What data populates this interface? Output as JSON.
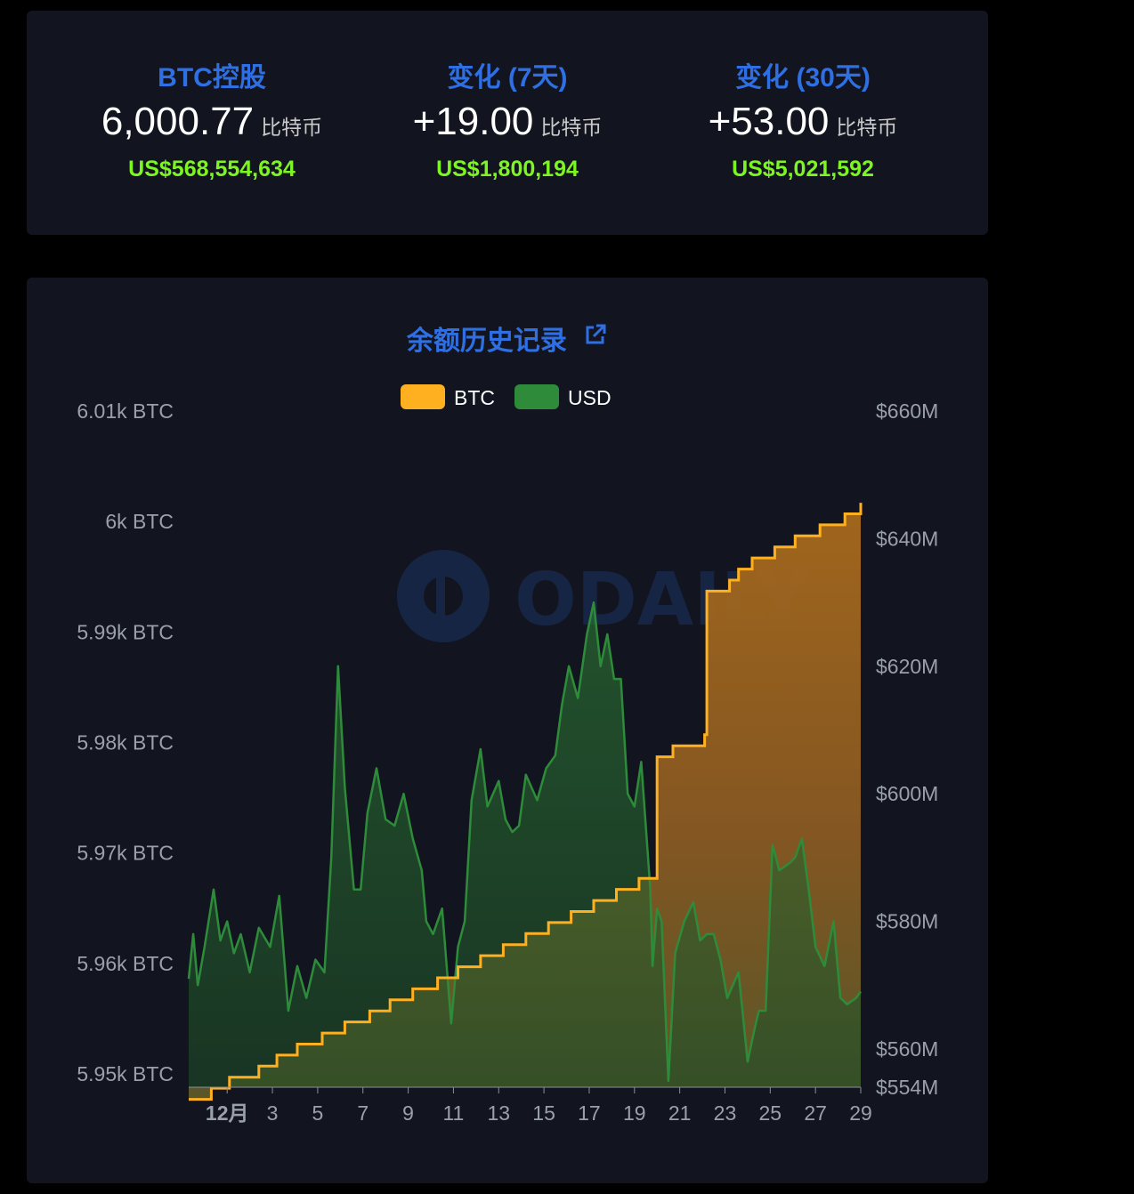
{
  "stats": [
    {
      "label": "BTC控股",
      "value": "6,000.77",
      "unit": "比特币",
      "usd": "US$568,554,634"
    },
    {
      "label": "变化 (7天)",
      "value": "+19.00",
      "unit": "比特币",
      "usd": "US$1,800,194"
    },
    {
      "label": "变化 (30天)",
      "value": "+53.00",
      "unit": "比特币",
      "usd": "US$5,021,592"
    }
  ],
  "watermark": "ODAILY",
  "colors": {
    "btc": "#ffb020",
    "usd": "#2e8b3a",
    "label": "#2f6fe4",
    "usd_text": "#7cf520",
    "card": "#12151f"
  },
  "chart_data": {
    "type": "line",
    "title": "余额历史记录",
    "title_icon": "external-link-icon",
    "legend": [
      {
        "name": "BTC",
        "color": "#ffb020"
      },
      {
        "name": "USD",
        "color": "#2e8b3a"
      }
    ],
    "legend_position": "top-center",
    "grid": false,
    "y_left": {
      "unit": " BTC",
      "min": 5.95,
      "max": 6.01,
      "ticks": [
        {
          "v": 6.01,
          "label": "6.01k BTC"
        },
        {
          "v": 6.0,
          "label": "6k BTC"
        },
        {
          "v": 5.99,
          "label": "5.99k BTC"
        },
        {
          "v": 5.98,
          "label": "5.98k BTC"
        },
        {
          "v": 5.97,
          "label": "5.97k BTC"
        },
        {
          "v": 5.96,
          "label": "5.96k BTC"
        },
        {
          "v": 5.95,
          "label": "5.95k BTC"
        }
      ]
    },
    "y_right": {
      "min": 554,
      "max": 660,
      "ticks": [
        {
          "v": 660,
          "label": "$660M"
        },
        {
          "v": 640,
          "label": "$640M"
        },
        {
          "v": 620,
          "label": "$620M"
        },
        {
          "v": 600,
          "label": "$600M"
        },
        {
          "v": 580,
          "label": "$580M"
        },
        {
          "v": 560,
          "label": "$560M"
        },
        {
          "v": 554,
          "label": "$554M"
        }
      ]
    },
    "x_axis": {
      "min": -0.7,
      "max": 29,
      "ticks": [
        {
          "v": 1,
          "label": "12月"
        },
        {
          "v": 3,
          "label": "3"
        },
        {
          "v": 5,
          "label": "5"
        },
        {
          "v": 7,
          "label": "7"
        },
        {
          "v": 9,
          "label": "9"
        },
        {
          "v": 11,
          "label": "11"
        },
        {
          "v": 13,
          "label": "13"
        },
        {
          "v": 15,
          "label": "15"
        },
        {
          "v": 17,
          "label": "17"
        },
        {
          "v": 19,
          "label": "19"
        },
        {
          "v": 21,
          "label": "21"
        },
        {
          "v": 23,
          "label": "23"
        },
        {
          "v": 25,
          "label": "25"
        },
        {
          "v": 27,
          "label": "27"
        },
        {
          "v": 29,
          "label": "29"
        }
      ]
    },
    "series": [
      {
        "name": "BTC",
        "axis": "left",
        "color": "#ffb020",
        "step": true,
        "points": [
          [
            -0.7,
            5.9477
          ],
          [
            0.3,
            5.9477
          ],
          [
            0.3,
            5.9487
          ],
          [
            1.1,
            5.9487
          ],
          [
            1.1,
            5.9497
          ],
          [
            2.4,
            5.9497
          ],
          [
            2.4,
            5.9507
          ],
          [
            3.2,
            5.9507
          ],
          [
            3.2,
            5.9517
          ],
          [
            4.1,
            5.9517
          ],
          [
            4.1,
            5.9527
          ],
          [
            5.2,
            5.9527
          ],
          [
            5.2,
            5.9537
          ],
          [
            6.2,
            5.9537
          ],
          [
            6.2,
            5.9547
          ],
          [
            7.3,
            5.9547
          ],
          [
            7.3,
            5.9557
          ],
          [
            8.2,
            5.9557
          ],
          [
            8.2,
            5.9567
          ],
          [
            9.2,
            5.9567
          ],
          [
            9.2,
            5.9577
          ],
          [
            10.3,
            5.9577
          ],
          [
            10.3,
            5.9587
          ],
          [
            11.2,
            5.9587
          ],
          [
            11.2,
            5.9597
          ],
          [
            12.2,
            5.9597
          ],
          [
            12.2,
            5.9607
          ],
          [
            13.2,
            5.9607
          ],
          [
            13.2,
            5.9617
          ],
          [
            14.2,
            5.9617
          ],
          [
            14.2,
            5.9627
          ],
          [
            15.2,
            5.9627
          ],
          [
            15.2,
            5.9637
          ],
          [
            16.2,
            5.9637
          ],
          [
            16.2,
            5.9647
          ],
          [
            17.2,
            5.9647
          ],
          [
            17.2,
            5.9657
          ],
          [
            18.2,
            5.9657
          ],
          [
            18.2,
            5.9667
          ],
          [
            19.2,
            5.9667
          ],
          [
            19.2,
            5.9677
          ],
          [
            20.0,
            5.9677
          ],
          [
            20.0,
            5.9787
          ],
          [
            20.7,
            5.9787
          ],
          [
            20.7,
            5.9797
          ],
          [
            22.1,
            5.9797
          ],
          [
            22.1,
            5.9807
          ],
          [
            22.2,
            5.9807
          ],
          [
            22.2,
            5.9937
          ],
          [
            23.2,
            5.9937
          ],
          [
            23.2,
            5.9947
          ],
          [
            23.6,
            5.9947
          ],
          [
            23.6,
            5.9957
          ],
          [
            24.2,
            5.9957
          ],
          [
            24.2,
            5.9967
          ],
          [
            25.2,
            5.9967
          ],
          [
            25.2,
            5.9977
          ],
          [
            26.1,
            5.9977
          ],
          [
            26.1,
            5.9987
          ],
          [
            27.2,
            5.9987
          ],
          [
            27.2,
            5.9997
          ],
          [
            28.3,
            5.9997
          ],
          [
            28.3,
            6.0007
          ],
          [
            29.0,
            6.0007
          ],
          [
            29.0,
            6.0017
          ]
        ]
      },
      {
        "name": "USD",
        "axis": "right",
        "color": "#2e8b3a",
        "points": [
          [
            -0.7,
            571
          ],
          [
            -0.5,
            578
          ],
          [
            -0.3,
            570
          ],
          [
            0,
            576
          ],
          [
            0.4,
            585
          ],
          [
            0.7,
            577
          ],
          [
            1.0,
            580
          ],
          [
            1.3,
            575
          ],
          [
            1.6,
            578
          ],
          [
            2.0,
            572
          ],
          [
            2.4,
            579
          ],
          [
            2.9,
            576
          ],
          [
            3.3,
            584
          ],
          [
            3.7,
            566
          ],
          [
            4.1,
            573
          ],
          [
            4.5,
            568
          ],
          [
            4.9,
            574
          ],
          [
            5.3,
            572
          ],
          [
            5.6,
            590
          ],
          [
            5.9,
            620
          ],
          [
            6.2,
            601
          ],
          [
            6.6,
            585
          ],
          [
            6.9,
            585
          ],
          [
            7.2,
            597
          ],
          [
            7.6,
            604
          ],
          [
            8.0,
            596
          ],
          [
            8.4,
            595
          ],
          [
            8.8,
            600
          ],
          [
            9.2,
            593
          ],
          [
            9.6,
            588
          ],
          [
            9.8,
            580
          ],
          [
            10.1,
            578
          ],
          [
            10.5,
            582
          ],
          [
            10.9,
            564
          ],
          [
            11.2,
            576
          ],
          [
            11.5,
            580
          ],
          [
            11.8,
            599
          ],
          [
            12.2,
            607
          ],
          [
            12.5,
            598
          ],
          [
            13.0,
            602
          ],
          [
            13.3,
            596
          ],
          [
            13.6,
            594
          ],
          [
            13.9,
            595
          ],
          [
            14.2,
            603
          ],
          [
            14.7,
            599
          ],
          [
            15.1,
            604
          ],
          [
            15.5,
            606
          ],
          [
            15.8,
            614
          ],
          [
            16.1,
            620
          ],
          [
            16.5,
            615
          ],
          [
            16.9,
            625
          ],
          [
            17.2,
            630
          ],
          [
            17.5,
            620
          ],
          [
            17.8,
            625
          ],
          [
            18.1,
            618
          ],
          [
            18.4,
            618
          ],
          [
            18.7,
            600
          ],
          [
            19.0,
            598
          ],
          [
            19.3,
            605
          ],
          [
            19.7,
            585
          ],
          [
            19.8,
            573
          ],
          [
            20.0,
            582
          ],
          [
            20.2,
            580
          ],
          [
            20.5,
            555
          ],
          [
            20.8,
            575
          ],
          [
            21.2,
            580
          ],
          [
            21.6,
            583
          ],
          [
            21.9,
            577
          ],
          [
            22.2,
            578
          ],
          [
            22.5,
            578
          ],
          [
            22.8,
            574
          ],
          [
            23.1,
            568
          ],
          [
            23.6,
            572
          ],
          [
            24.0,
            558
          ],
          [
            24.3,
            563
          ],
          [
            24.5,
            566
          ],
          [
            24.8,
            566
          ],
          [
            25.1,
            592
          ],
          [
            25.4,
            588
          ],
          [
            25.8,
            589
          ],
          [
            26.1,
            590
          ],
          [
            26.4,
            593
          ],
          [
            26.7,
            585
          ],
          [
            27.0,
            576
          ],
          [
            27.4,
            573
          ],
          [
            27.8,
            580
          ],
          [
            28.1,
            568
          ],
          [
            28.4,
            567
          ],
          [
            28.8,
            568
          ],
          [
            29.0,
            569
          ]
        ]
      }
    ]
  }
}
